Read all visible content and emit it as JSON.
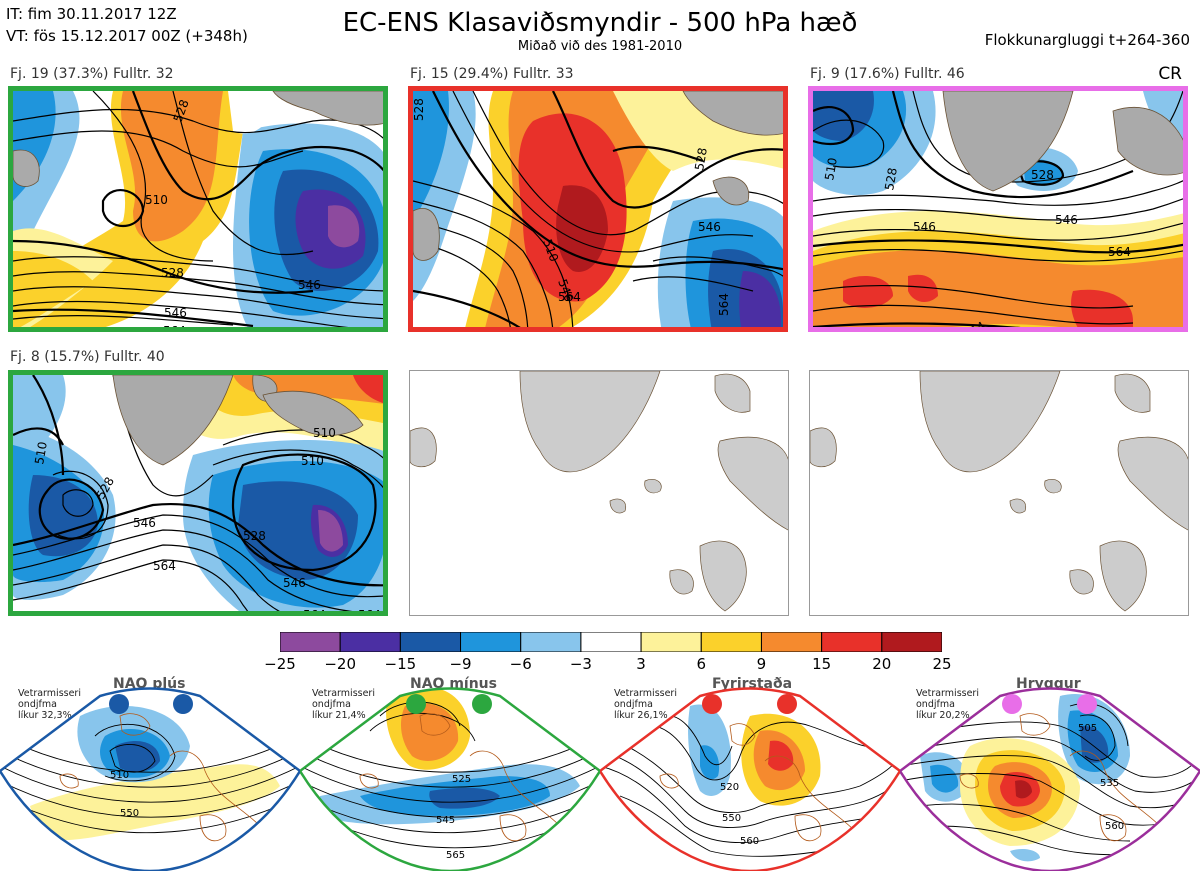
{
  "header": {
    "issue_time": "IT: fim 30.11.2017 12Z",
    "valid_time": "VT: fös 15.12.2017 00Z  (+348h)",
    "title": "EC-ENS Klasaviðsmyndir - 500 hPa hæð",
    "subtitle": "Miðað við des 1981-2010",
    "window": "Flokkunargluggi t+264-360",
    "cr": "CR"
  },
  "panels": [
    {
      "label": "Fj. 19 (37.3%)   Fulltr. 32",
      "border": "#2ca73f",
      "contours": [
        "510",
        "528",
        "528",
        "546",
        "564",
        "546",
        "5"
      ]
    },
    {
      "label": "Fj. 15 (29.4%)   Fulltr. 33",
      "border": "#e8312a",
      "contours": [
        "528",
        "510",
        "528",
        "546",
        "564",
        "546",
        "564"
      ]
    },
    {
      "label": "Fj. 9 (17.6%)   Fulltr. 46",
      "border": "#e86ee8",
      "contours": [
        "510",
        "528",
        "528",
        "546",
        "564",
        "546",
        "54"
      ]
    },
    {
      "label": "Fj. 8 (15.7%)   Fulltr. 40",
      "border": "#2ca73f",
      "contours": [
        "510",
        "528",
        "510",
        "546",
        "528",
        "564",
        "546",
        "564"
      ]
    }
  ],
  "colorbar": {
    "colors": [
      "#8d4a9e",
      "#4b2fa3",
      "#1a59a6",
      "#1f95dc",
      "#88c5ec",
      "#ffffff",
      "#fdf29a",
      "#fbd12b",
      "#f58a2e",
      "#e8312a",
      "#b01a1e"
    ],
    "ticks": [
      "−25",
      "−20",
      "−15",
      "−9",
      "−6",
      "−3",
      "3",
      "6",
      "9",
      "15",
      "20",
      "25"
    ]
  },
  "regimes": [
    {
      "name": "NAO plús",
      "info": [
        "Vetrarmisseri",
        "ondjfma",
        "líkur 32,3%"
      ],
      "color": "#1a59a6",
      "contours": [
        "510",
        "550"
      ]
    },
    {
      "name": "NAO mínus",
      "info": [
        "Vetrarmisseri",
        "ondjfma",
        "líkur 21,4%"
      ],
      "color": "#2ca73f",
      "contours": [
        "525",
        "545",
        "565"
      ]
    },
    {
      "name": "Fyrirstaða",
      "info": [
        "Vetrarmisseri",
        "ondjfma",
        "líkur 26,1%"
      ],
      "color": "#e8312a",
      "contours": [
        "520",
        "550",
        "560"
      ]
    },
    {
      "name": "Hryggur",
      "info": [
        "Vetrarmisseri",
        "ondjfma",
        "líkur 20,2%"
      ],
      "color": "#9b2e9b",
      "contours": [
        "505",
        "535",
        "560"
      ]
    }
  ]
}
